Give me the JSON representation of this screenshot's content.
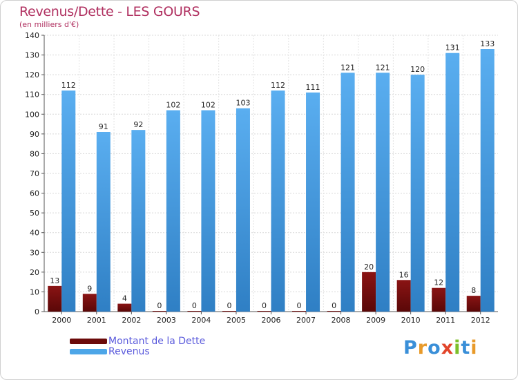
{
  "chart_data": {
    "type": "bar",
    "title": "Revenus/Dette - LES GOURS",
    "subtitle": "(en milliers d'€)",
    "categories": [
      "2000",
      "2001",
      "2002",
      "2003",
      "2004",
      "2005",
      "2006",
      "2007",
      "2008",
      "2009",
      "2010",
      "2011",
      "2012"
    ],
    "series": [
      {
        "name": "Montant de la Dette",
        "color": "#7a0c0c",
        "values": [
          13,
          9,
          4,
          0,
          0,
          0,
          0,
          0,
          0,
          20,
          16,
          12,
          8
        ]
      },
      {
        "name": "Revenus",
        "color": "#4da6e8",
        "values": [
          112,
          91,
          92,
          102,
          102,
          103,
          112,
          111,
          121,
          121,
          120,
          131,
          133
        ]
      }
    ],
    "ylim": [
      0,
      140
    ],
    "yticks": [
      0,
      10,
      20,
      30,
      40,
      50,
      60,
      70,
      80,
      90,
      100,
      110,
      120,
      130,
      140
    ],
    "grid": true,
    "legend_position": "bottom-left"
  },
  "logo": {
    "letters": [
      {
        "ch": "P",
        "color": "#3a8fd8"
      },
      {
        "ch": "r",
        "color": "#e89a2a"
      },
      {
        "ch": "o",
        "color": "#3a8fd8"
      },
      {
        "ch": "x",
        "color": "#e2452a"
      },
      {
        "ch": "i",
        "color": "#7cbf2a"
      },
      {
        "ch": "t",
        "color": "#3a8fd8"
      },
      {
        "ch": "i",
        "color": "#e89a2a"
      }
    ]
  }
}
